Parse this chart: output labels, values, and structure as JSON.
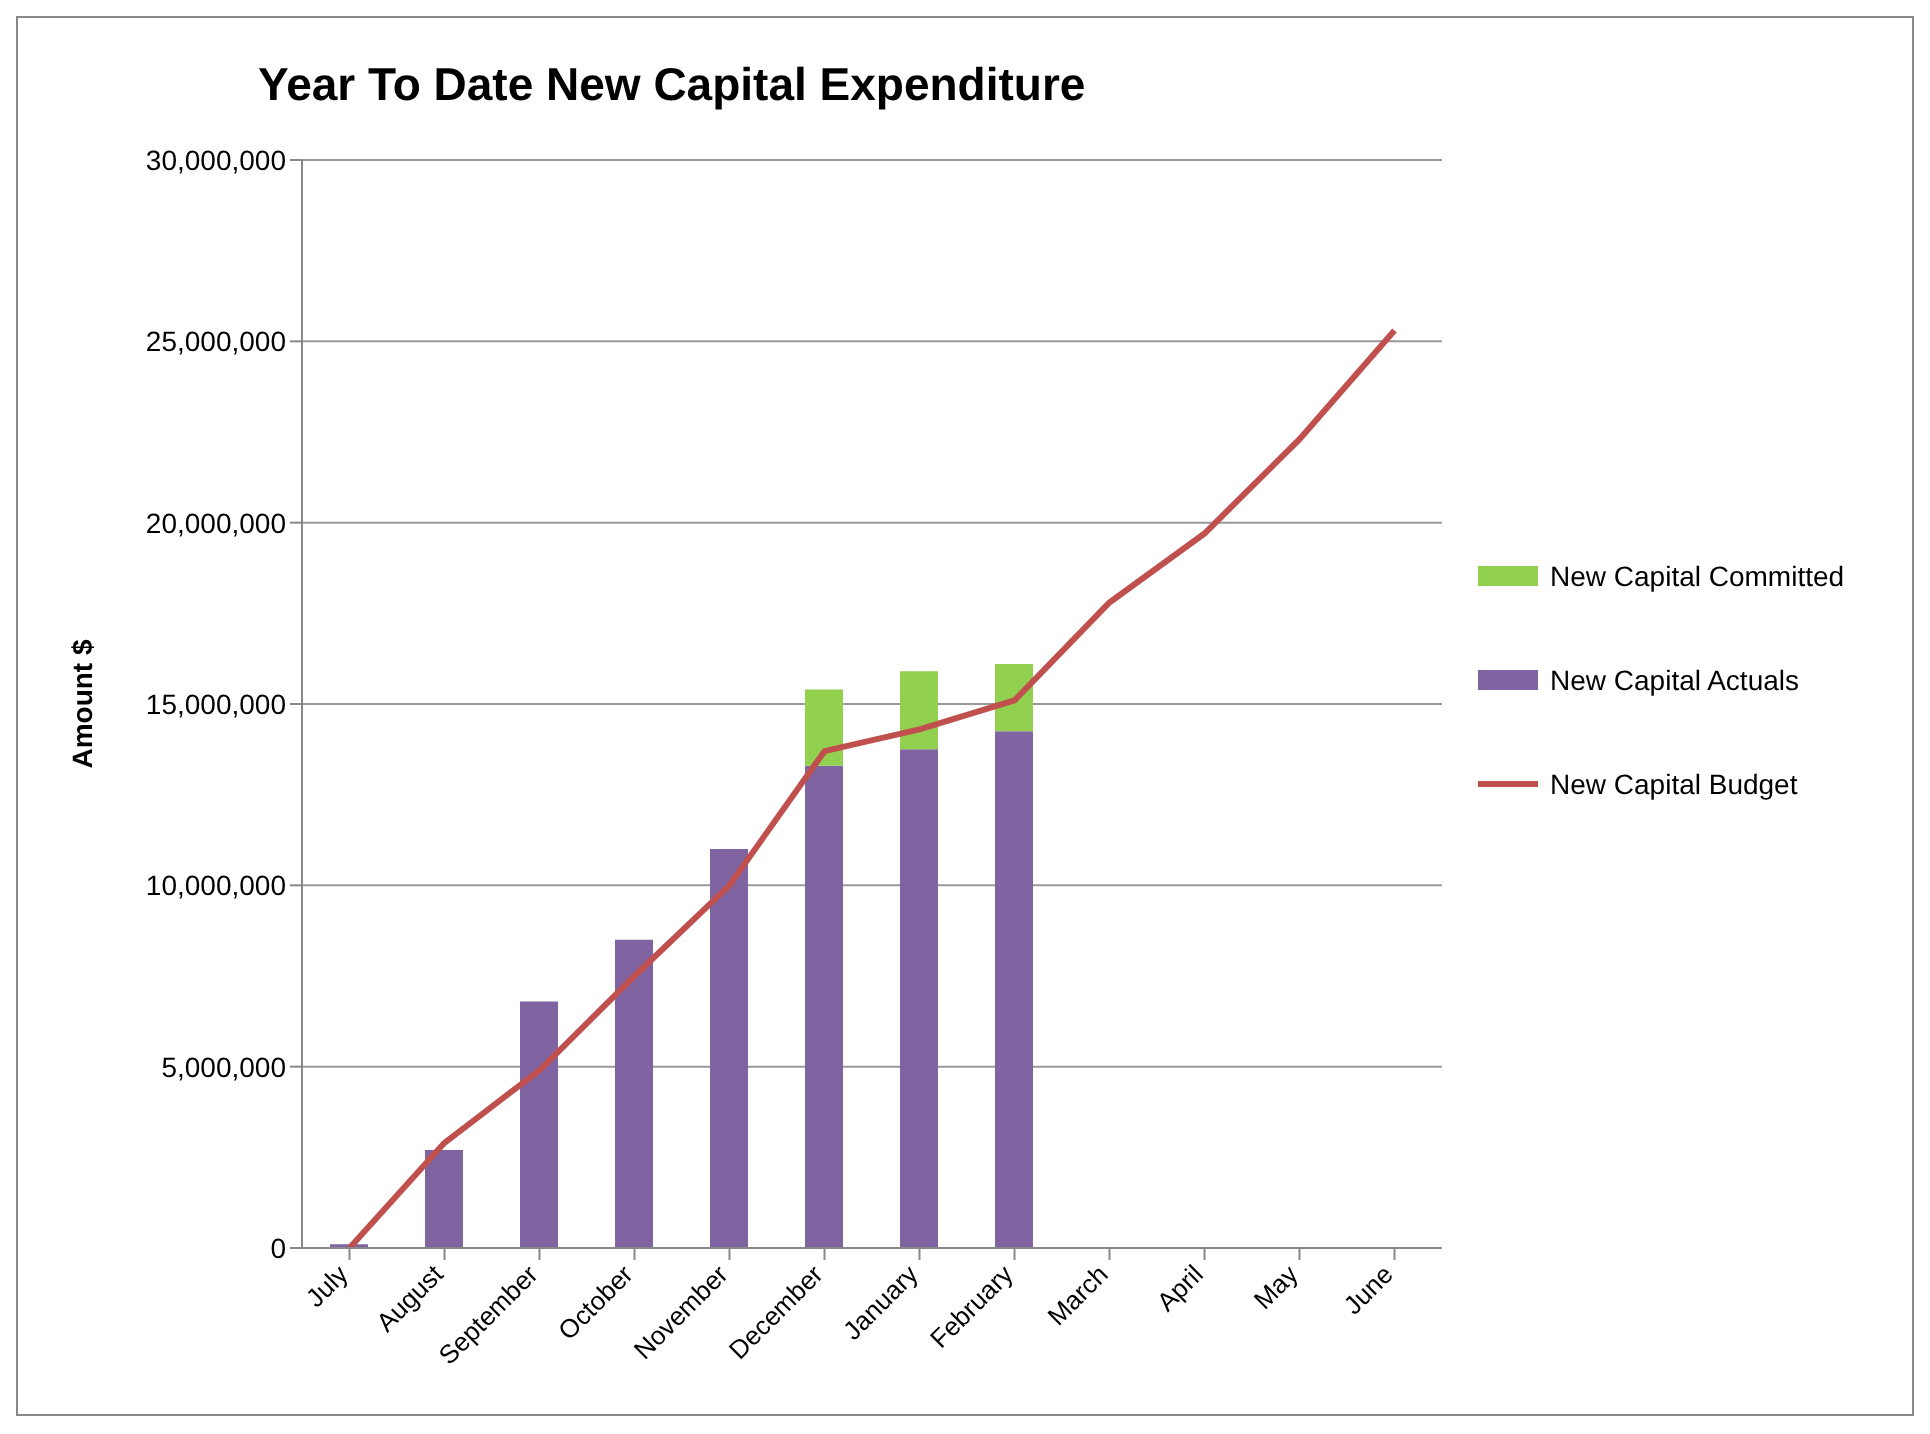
{
  "chart_data": {
    "type": "bar",
    "title": "Year To Date New Capital Expenditure",
    "ylabel": "Amount $",
    "categories": [
      "July",
      "August",
      "September",
      "October",
      "November",
      "December",
      "January",
      "February",
      "March",
      "April",
      "May",
      "June"
    ],
    "stacked": true,
    "series": [
      {
        "name": "New Capital Actuals",
        "color": "#8064a2",
        "values": [
          100000,
          2700000,
          6800000,
          8500000,
          11000000,
          13300000,
          13750000,
          14250000,
          null,
          null,
          null,
          null
        ]
      },
      {
        "name": "New Capital Committed",
        "color": "#92d050",
        "values": [
          null,
          null,
          null,
          null,
          null,
          2100000,
          2150000,
          1850000,
          null,
          null,
          null,
          null
        ]
      },
      {
        "name": "New Capital Budget",
        "type": "line",
        "color": "#c0504d",
        "marker": "none",
        "values": [
          0,
          2900000,
          4900000,
          7500000,
          10000000,
          13700000,
          14300000,
          15100000,
          17800000,
          19700000,
          22300000,
          25300000
        ]
      }
    ],
    "ylim": [
      0,
      30000000
    ],
    "yticks": [
      {
        "value": 0,
        "label": "0"
      },
      {
        "value": 5000000,
        "label": "5,000,000"
      },
      {
        "value": 10000000,
        "label": "10,000,000"
      },
      {
        "value": 15000000,
        "label": "15,000,000"
      },
      {
        "value": 20000000,
        "label": "20,000,000"
      },
      {
        "value": 25000000,
        "label": "25,000,000"
      },
      {
        "value": 30000000,
        "label": "30,000,000"
      }
    ],
    "grid": "y",
    "legend": "right"
  }
}
